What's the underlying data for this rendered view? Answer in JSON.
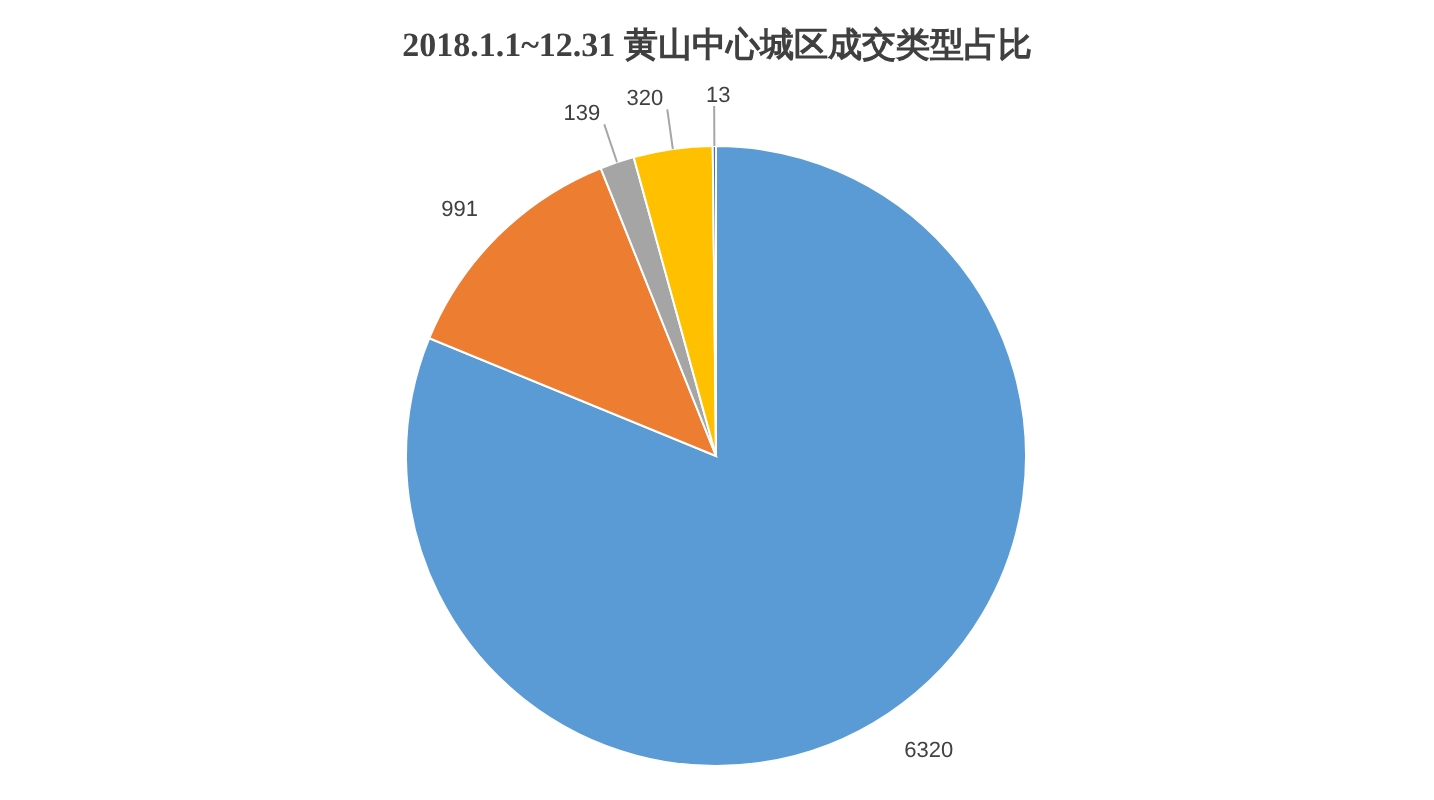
{
  "chart_data": {
    "type": "pie",
    "title": "2018.1.1~12.31 黄山中心城区成交类型占比",
    "categories": [
      null,
      null,
      null,
      null,
      null
    ],
    "values": [
      6320,
      991,
      139,
      320,
      13
    ],
    "colors": [
      "#5b9bd5",
      "#ed7d31",
      "#a5a5a5",
      "#ffc000",
      "#4472c4"
    ],
    "data_labels": true
  }
}
